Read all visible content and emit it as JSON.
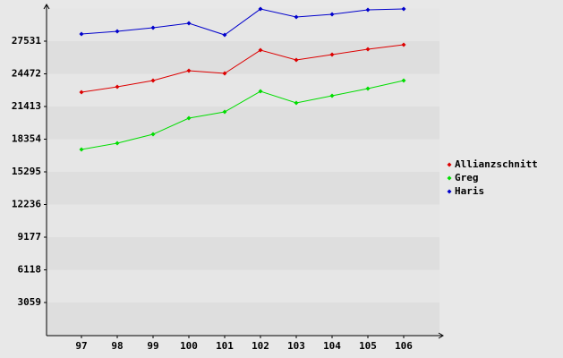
{
  "chart_data": {
    "type": "line",
    "categories": [
      "97",
      "98",
      "99",
      "100",
      "101",
      "102",
      "103",
      "104",
      "105",
      "106"
    ],
    "series": [
      {
        "name": "Allianzschnitt",
        "color": "#dd0000",
        "values": [
          22752,
          23255,
          23841,
          24763,
          24512,
          26690,
          25769,
          26271,
          26774,
          27193
        ]
      },
      {
        "name": "Greg",
        "color": "#00dd00",
        "values": [
          17389,
          17975,
          18813,
          20322,
          20908,
          22836,
          21746,
          22417,
          23087,
          23841
        ]
      },
      {
        "name": "Haris",
        "color": "#0000cc",
        "values": [
          28199,
          28450,
          28785,
          29204,
          28115,
          30545,
          29791,
          30042,
          30461,
          30545
        ]
      }
    ],
    "ylim": [
      0,
      30590
    ],
    "yticks": [
      3059,
      6118,
      9177,
      12236,
      15295,
      18354,
      21413,
      24472,
      27531
    ],
    "grid": true
  }
}
